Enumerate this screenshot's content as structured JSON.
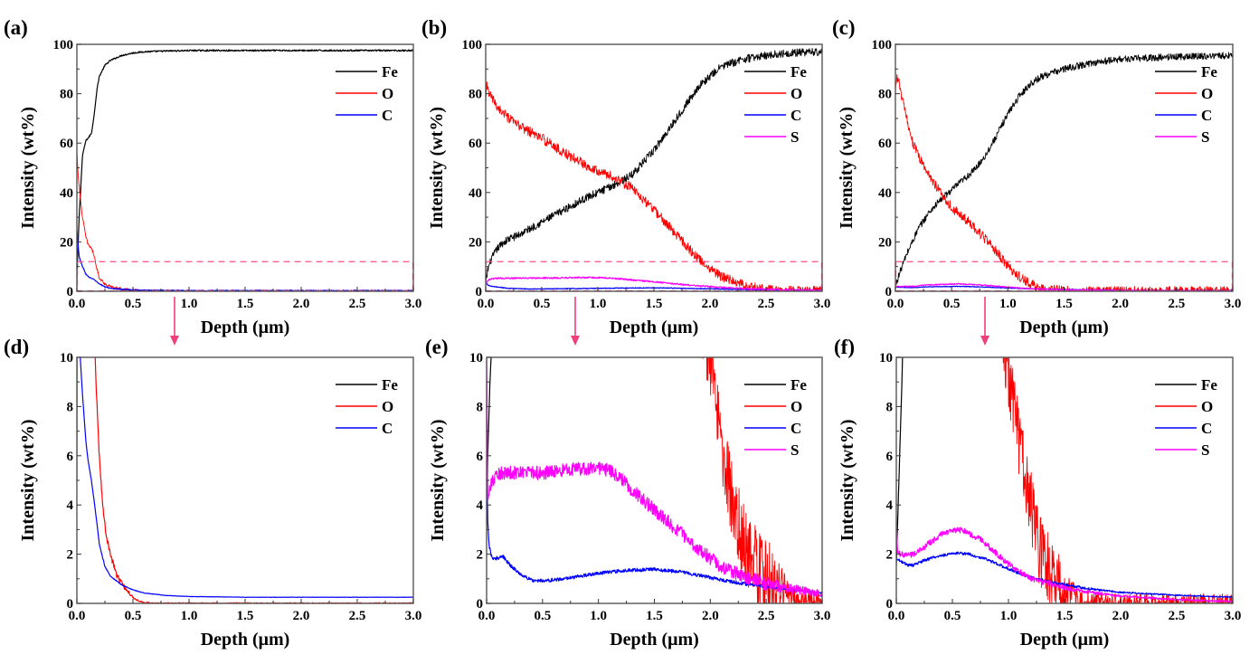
{
  "figure": {
    "description": "Six-panel GDOES depth profiles of element composition (wt%) vs depth; bottom row magnifies the 0-10 wt% region (dashed box) of the top row",
    "zoom_box_ylim": [
      0,
      12
    ],
    "arrow_color": "#f0407a",
    "zoom_box_color": "#ff4f8b"
  },
  "colors": {
    "Fe": "#000000",
    "O": "#ff0000",
    "C": "#0000ff",
    "S": "#ff00ff"
  },
  "chart_data": [
    {
      "id": "a",
      "type": "line",
      "panel_label": "(a)",
      "xlabel": "Depth (μm)",
      "ylabel": "Intensity (wt%)",
      "xlim": [
        0,
        3.0
      ],
      "ylim": [
        0,
        100
      ],
      "xticks": [
        "0.0",
        "0.5",
        "1.0",
        "1.5",
        "2.0",
        "2.5",
        "3.0"
      ],
      "yticks": [
        "0",
        "20",
        "40",
        "60",
        "80",
        "100"
      ],
      "legend": [
        "Fe",
        "O",
        "C"
      ],
      "legend_position": "top-right",
      "has_zoom_box": true,
      "noise": {
        "Fe": 0.3,
        "O": 0.6,
        "C": 0.2
      },
      "series": [
        {
          "name": "Fe",
          "x": [
            0,
            0.02,
            0.05,
            0.08,
            0.1,
            0.13,
            0.15,
            0.18,
            0.2,
            0.25,
            0.3,
            0.4,
            0.5,
            0.6,
            0.8,
            1.0,
            1.5,
            2.0,
            2.5,
            3.0
          ],
          "y": [
            5,
            30,
            55,
            61,
            62,
            64,
            70,
            82,
            87,
            91.5,
            93.5,
            95.5,
            96.5,
            97,
            97.3,
            97.5,
            97.5,
            97.5,
            97.5,
            97.5
          ]
        },
        {
          "name": "O",
          "x": [
            0,
            0.01,
            0.03,
            0.05,
            0.08,
            0.1,
            0.13,
            0.15,
            0.18,
            0.2,
            0.25,
            0.3,
            0.4,
            0.5,
            0.6,
            1.0,
            3.0
          ],
          "y": [
            57,
            48,
            38,
            30,
            22,
            19,
            17.5,
            15,
            9,
            5.5,
            3,
            1.8,
            0.9,
            0.4,
            0.1,
            0,
            0
          ]
        },
        {
          "name": "C",
          "x": [
            0,
            0.02,
            0.05,
            0.08,
            0.1,
            0.13,
            0.15,
            0.2,
            0.25,
            0.3,
            0.4,
            0.5,
            0.6,
            0.8,
            1.0,
            3.0
          ],
          "y": [
            25,
            14,
            10,
            7,
            6,
            5.2,
            4.8,
            3,
            1.8,
            1.2,
            0.8,
            0.6,
            0.4,
            0.3,
            0.25,
            0.25
          ]
        }
      ]
    },
    {
      "id": "b",
      "type": "line",
      "panel_label": "(b)",
      "xlabel": "Depth (μm)",
      "ylabel": "Intensity (wt%)",
      "xlim": [
        0,
        3.0
      ],
      "ylim": [
        0,
        100
      ],
      "xticks": [
        "0.0",
        "0.5",
        "1.0",
        "1.5",
        "2.0",
        "2.5",
        "3.0"
      ],
      "yticks": [
        "0",
        "20",
        "40",
        "60",
        "80",
        "100"
      ],
      "legend": [
        "Fe",
        "O",
        "C",
        "S"
      ],
      "legend_position": "top-right",
      "has_zoom_box": true,
      "noise": {
        "Fe": 1.6,
        "O": 2.0,
        "C": 0.15,
        "S": 0.3
      },
      "series": [
        {
          "name": "Fe",
          "x": [
            0,
            0.02,
            0.05,
            0.1,
            0.15,
            0.2,
            0.3,
            0.5,
            0.7,
            0.9,
            1.1,
            1.3,
            1.5,
            1.7,
            1.9,
            2.1,
            2.3,
            2.5,
            2.7,
            3.0
          ],
          "y": [
            3,
            9,
            13,
            17,
            19.5,
            21,
            23,
            28,
            33,
            38,
            42,
            47,
            57,
            70,
            83,
            91,
            94,
            95.5,
            96.5,
            97
          ]
        },
        {
          "name": "O",
          "x": [
            0,
            0.01,
            0.03,
            0.1,
            0.2,
            0.3,
            0.5,
            0.7,
            0.9,
            1.1,
            1.3,
            1.5,
            1.7,
            1.9,
            2.1,
            2.3,
            2.5,
            2.7,
            3.0
          ],
          "y": [
            75,
            84,
            80,
            75,
            70,
            67,
            62,
            56,
            51,
            47,
            42,
            33,
            23,
            13,
            6,
            2.5,
            0.8,
            0.2,
            0
          ]
        },
        {
          "name": "C",
          "x": [
            0,
            0.02,
            0.05,
            0.1,
            0.2,
            0.4,
            0.8,
            1.2,
            1.5,
            2.0,
            2.5,
            3.0
          ],
          "y": [
            4,
            2.5,
            2.0,
            1.8,
            1.2,
            0.9,
            1.1,
            1.3,
            1.4,
            1.0,
            0.6,
            0.4
          ]
        },
        {
          "name": "S",
          "x": [
            0,
            0.02,
            0.05,
            0.1,
            0.3,
            0.6,
            0.9,
            1.1,
            1.3,
            1.5,
            1.7,
            1.9,
            2.1,
            2.3,
            2.5,
            2.8,
            3.0
          ],
          "y": [
            3,
            4.5,
            5,
            5.3,
            5.3,
            5.4,
            5.6,
            5.4,
            4.6,
            3.8,
            3.0,
            2.2,
            1.6,
            1.1,
            0.8,
            0.5,
            0.4
          ]
        }
      ]
    },
    {
      "id": "c",
      "type": "line",
      "panel_label": "(c)",
      "xlabel": "Depth (μm)",
      "ylabel": "Intensity (wt%)",
      "xlim": [
        0,
        3.0
      ],
      "ylim": [
        0,
        100
      ],
      "xticks": [
        "0.0",
        "0.5",
        "1.0",
        "1.5",
        "2.0",
        "2.5",
        "3.0"
      ],
      "yticks": [
        "0",
        "20",
        "40",
        "60",
        "80",
        "100"
      ],
      "legend": [
        "Fe",
        "O",
        "C",
        "S"
      ],
      "legend_position": "top-right",
      "has_zoom_box": true,
      "noise": {
        "Fe": 1.4,
        "O": 2.0,
        "C": 0.12,
        "S": 0.2
      },
      "series": [
        {
          "name": "Fe",
          "x": [
            0,
            0.02,
            0.05,
            0.1,
            0.2,
            0.3,
            0.4,
            0.5,
            0.6,
            0.7,
            0.8,
            0.9,
            1.0,
            1.1,
            1.2,
            1.3,
            1.5,
            1.75,
            2.0,
            2.5,
            3.0
          ],
          "y": [
            2,
            5,
            9,
            15,
            25,
            32,
            37,
            41,
            45,
            49,
            55,
            63,
            72,
            79,
            84,
            87,
            90,
            92.5,
            94,
            95,
            95.5
          ]
        },
        {
          "name": "O",
          "x": [
            0,
            0.01,
            0.03,
            0.05,
            0.1,
            0.15,
            0.2,
            0.3,
            0.4,
            0.5,
            0.6,
            0.7,
            0.8,
            0.9,
            1.0,
            1.1,
            1.2,
            1.3,
            1.4,
            1.6,
            3.0
          ],
          "y": [
            80,
            87,
            85,
            80,
            70,
            61,
            55,
            47,
            40,
            34,
            30,
            26,
            21,
            16,
            10,
            6,
            3,
            1.3,
            0.5,
            0,
            0
          ]
        },
        {
          "name": "C",
          "x": [
            0,
            0.15,
            0.3,
            0.6,
            0.9,
            1.2,
            1.5,
            1.9,
            2.0,
            3.0
          ],
          "y": [
            1.7,
            1.5,
            1.8,
            2.0,
            1.5,
            1.0,
            0.7,
            0.5,
            0.3,
            0.25
          ]
        },
        {
          "name": "S",
          "x": [
            0,
            0.15,
            0.3,
            0.55,
            0.75,
            1.0,
            1.2,
            1.5,
            2.0,
            2.5,
            3.0
          ],
          "y": [
            2.0,
            2.0,
            2.6,
            3.0,
            2.6,
            1.7,
            1.1,
            0.6,
            0.3,
            0.15,
            0.1
          ]
        }
      ]
    },
    {
      "id": "d",
      "type": "line",
      "panel_label": "(d)",
      "xlabel": "Depth (μm)",
      "ylabel": "Intensity (wt%)",
      "xlim": [
        0,
        3.0
      ],
      "ylim": [
        0,
        10
      ],
      "xticks": [
        "0.0",
        "0.5",
        "1.0",
        "1.5",
        "2.0",
        "2.5",
        "3.0"
      ],
      "yticks": [
        "0",
        "2",
        "4",
        "6",
        "8",
        "10"
      ],
      "legend": [
        "Fe",
        "O",
        "C"
      ],
      "legend_position": "top-right",
      "has_zoom_box": false,
      "noise": {
        "Fe": 0.0,
        "O": 0.12,
        "C": 0.02
      },
      "series": [
        {
          "name": "Fe",
          "x": [
            0,
            0.005
          ],
          "y": [
            5,
            30
          ]
        },
        {
          "name": "O",
          "x": [
            0.15,
            0.17,
            0.2,
            0.23,
            0.26,
            0.3,
            0.35,
            0.4,
            0.45,
            0.5,
            0.55,
            0.6,
            0.7,
            3.0
          ],
          "y": [
            12,
            9,
            6,
            4,
            2.8,
            2.0,
            1.2,
            0.8,
            0.5,
            0.25,
            0.1,
            0.03,
            0,
            0
          ]
        },
        {
          "name": "C",
          "x": [
            0.03,
            0.05,
            0.08,
            0.1,
            0.13,
            0.15,
            0.18,
            0.2,
            0.25,
            0.3,
            0.4,
            0.5,
            0.6,
            0.8,
            1.0,
            1.5,
            2.0,
            3.0
          ],
          "y": [
            10,
            8.5,
            6.6,
            5.8,
            5.0,
            4.3,
            3.2,
            2.4,
            1.5,
            1.1,
            0.75,
            0.55,
            0.42,
            0.32,
            0.28,
            0.25,
            0.25,
            0.25
          ]
        }
      ]
    },
    {
      "id": "e",
      "type": "line",
      "panel_label": "(e)",
      "xlabel": "Depth (μm)",
      "ylabel": "Intensity (wt%)",
      "xlim": [
        0,
        3.0
      ],
      "ylim": [
        0,
        10
      ],
      "xticks": [
        "0.0",
        "0.5",
        "1.0",
        "1.5",
        "2.0",
        "2.5",
        "3.0"
      ],
      "yticks": [
        "0",
        "2",
        "4",
        "6",
        "8",
        "10"
      ],
      "legend": [
        "Fe",
        "O",
        "C",
        "S"
      ],
      "legend_position": "top-right",
      "has_zoom_box": false,
      "noise": {
        "Fe": 0.1,
        "O": 1.6,
        "C": 0.07,
        "S": 0.28
      },
      "series": [
        {
          "name": "Fe",
          "x": [
            0,
            0.01,
            0.03,
            0.05
          ],
          "y": [
            3,
            6,
            9,
            11
          ]
        },
        {
          "name": "O",
          "x": [
            1.9,
            2.0,
            2.05,
            2.1,
            2.15,
            2.2,
            2.25,
            2.3,
            2.4,
            2.5,
            2.6,
            2.7,
            2.8,
            3.0
          ],
          "y": [
            12,
            10,
            8,
            6.5,
            5.3,
            4.2,
            3.2,
            2.4,
            1.6,
            1.0,
            0.6,
            0.3,
            0.1,
            0
          ]
        },
        {
          "name": "C",
          "x": [
            0,
            0.01,
            0.02,
            0.05,
            0.1,
            0.15,
            0.2,
            0.3,
            0.4,
            0.5,
            0.7,
            0.9,
            1.1,
            1.3,
            1.5,
            1.7,
            1.9,
            2.1,
            2.3,
            2.5,
            2.7,
            3.0
          ],
          "y": [
            6,
            3.5,
            2.4,
            1.8,
            1.85,
            1.9,
            1.6,
            1.2,
            0.95,
            0.92,
            1.0,
            1.15,
            1.28,
            1.35,
            1.38,
            1.3,
            1.15,
            0.95,
            0.8,
            0.68,
            0.55,
            0.42
          ]
        },
        {
          "name": "S",
          "x": [
            0,
            0.01,
            0.03,
            0.05,
            0.1,
            0.3,
            0.5,
            0.7,
            0.9,
            1.0,
            1.1,
            1.2,
            1.3,
            1.5,
            1.7,
            1.9,
            2.1,
            2.3,
            2.5,
            2.7,
            3.0
          ],
          "y": [
            10,
            4.2,
            4.6,
            5.0,
            5.3,
            5.3,
            5.3,
            5.4,
            5.5,
            5.5,
            5.4,
            5.1,
            4.6,
            3.8,
            3.0,
            2.2,
            1.5,
            1.1,
            0.8,
            0.6,
            0.4
          ]
        }
      ]
    },
    {
      "id": "f",
      "type": "line",
      "panel_label": "(f)",
      "xlabel": "Depth (μm)",
      "ylabel": "Intensity (wt%)",
      "xlim": [
        0,
        3.0
      ],
      "ylim": [
        0,
        10
      ],
      "xticks": [
        "0.0",
        "0.5",
        "1.0",
        "1.5",
        "2.0",
        "2.5",
        "3.0"
      ],
      "yticks": [
        "0",
        "2",
        "4",
        "6",
        "8",
        "10"
      ],
      "legend": [
        "Fe",
        "O",
        "C",
        "S"
      ],
      "legend_position": "top-right",
      "has_zoom_box": false,
      "noise": {
        "Fe": 0.05,
        "O": 1.6,
        "C": 0.06,
        "S": 0.12
      },
      "series": [
        {
          "name": "Fe",
          "x": [
            0,
            0.01,
            0.03,
            0.05,
            0.06
          ],
          "y": [
            1.5,
            3,
            6,
            9,
            11
          ]
        },
        {
          "name": "O",
          "x": [
            0.95,
            1.0,
            1.05,
            1.1,
            1.15,
            1.2,
            1.25,
            1.3,
            1.35,
            1.4,
            1.5,
            1.6,
            1.7,
            1.8,
            2.0,
            3.0
          ],
          "y": [
            11,
            9.5,
            8,
            6.5,
            5.0,
            3.8,
            2.8,
            2.0,
            1.4,
            1.0,
            0.5,
            0.25,
            0.1,
            0.05,
            0,
            0
          ]
        },
        {
          "name": "C",
          "x": [
            0,
            0.05,
            0.1,
            0.15,
            0.25,
            0.4,
            0.55,
            0.65,
            0.8,
            1.0,
            1.2,
            1.4,
            1.6,
            1.8,
            2.0,
            2.5,
            3.0
          ],
          "y": [
            1.8,
            1.7,
            1.55,
            1.55,
            1.75,
            1.95,
            2.05,
            2.0,
            1.8,
            1.4,
            1.05,
            0.85,
            0.68,
            0.55,
            0.45,
            0.33,
            0.25
          ]
        },
        {
          "name": "S",
          "x": [
            0,
            0.01,
            0.03,
            0.1,
            0.15,
            0.25,
            0.4,
            0.5,
            0.6,
            0.75,
            0.9,
            1.0,
            1.2,
            1.4,
            1.6,
            1.8,
            2.0,
            2.5,
            3.0
          ],
          "y": [
            3.5,
            2.2,
            2.0,
            1.95,
            2.0,
            2.3,
            2.8,
            3.0,
            2.95,
            2.6,
            2.0,
            1.6,
            1.0,
            0.75,
            0.55,
            0.4,
            0.3,
            0.15,
            0.08
          ]
        }
      ]
    }
  ]
}
